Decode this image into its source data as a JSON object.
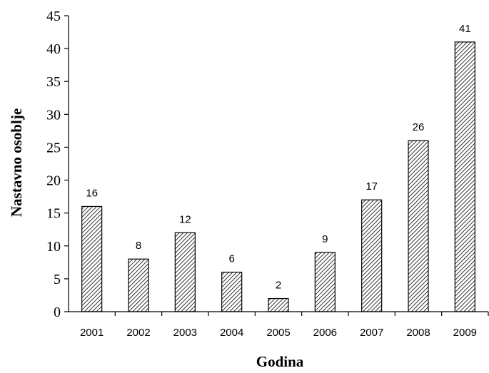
{
  "chart_data": {
    "type": "bar",
    "categories": [
      "2001",
      "2002",
      "2003",
      "2004",
      "2005",
      "2006",
      "2007",
      "2008",
      "2009"
    ],
    "values": [
      16,
      8,
      12,
      6,
      2,
      9,
      17,
      26,
      41
    ],
    "data_labels": [
      "16",
      "8",
      "12",
      "6",
      "2",
      "9",
      "17",
      "26",
      "41"
    ],
    "title": "",
    "xlabel": "Godina",
    "ylabel": "Nastavno osoblje",
    "ylim": [
      0,
      45
    ],
    "yticks": [
      "0",
      "5",
      "10",
      "15",
      "20",
      "25",
      "30",
      "35",
      "40",
      "45"
    ],
    "grid": false,
    "legend": "none",
    "bar_fill": "diagonal-hatch",
    "colors": {
      "bar_stroke": "#000000",
      "hatch": "#000000",
      "background": "#ffffff"
    }
  }
}
